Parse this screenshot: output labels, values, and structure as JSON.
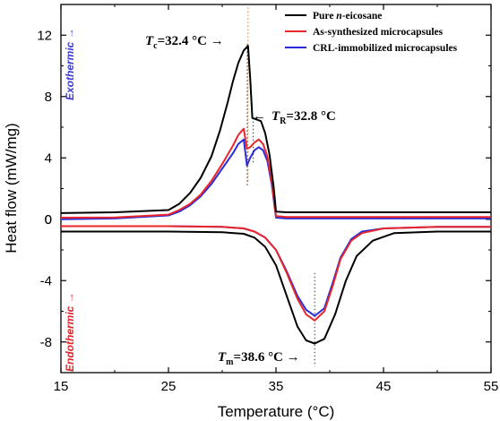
{
  "chart_data": {
    "type": "line",
    "xlabel": "Temperature (",
    "xlabel_unit": "°C",
    "xlabel_close": ")",
    "ylabel": "Heat flow (mW/mg)",
    "xlim": [
      15,
      55
    ],
    "ylim": [
      -10,
      14
    ],
    "x_ticks": [
      "15",
      "25",
      "35",
      "45",
      "55"
    ],
    "y_ticks": [
      "-8",
      "-4",
      "0",
      "4",
      "8",
      "12"
    ],
    "legend": {
      "position": "top-right",
      "entries": [
        {
          "prefix": "Pure ",
          "italic": "n",
          "suffix": "-eicosane",
          "color": "#000000"
        },
        {
          "prefix": "As-synthesized microcapsules",
          "italic": "",
          "suffix": "",
          "color": "#e8262b"
        },
        {
          "prefix": "CRL-immobilized microcapsules",
          "italic": "",
          "suffix": "",
          "color": "#2b2bd9"
        }
      ]
    },
    "annotations": {
      "tc": {
        "symbol": "T",
        "sub": "c",
        "text": "=32.4 °C →",
        "x": 32.4
      },
      "tr": {
        "arrow": "←",
        "symbol": "T",
        "sub": "R",
        "text": "=32.8 °C",
        "x": 32.8
      },
      "tm": {
        "symbol": "T",
        "sub": "m",
        "text": "=38.6 °C →",
        "x": 38.6
      }
    },
    "side_labels": {
      "exo": {
        "text": "Exothermic →",
        "color": "#3b3bd6"
      },
      "endo": {
        "text": "Endothermic →",
        "color": "#e0262b"
      }
    },
    "series": [
      {
        "name": "Pure n-eicosane (cooling)",
        "color": "#000000",
        "x": [
          15,
          20,
          25,
          26,
          27,
          28,
          29,
          29.8,
          30.5,
          31,
          31.5,
          32,
          32.4,
          32.6,
          32.8,
          33.2,
          33.6,
          34,
          34.4,
          34.8,
          35,
          36,
          45,
          55
        ],
        "y": [
          0.4,
          0.45,
          0.6,
          1.0,
          1.7,
          2.7,
          4.1,
          5.8,
          7.6,
          9.0,
          10.2,
          11.0,
          11.3,
          9.2,
          6.6,
          6.5,
          6.4,
          5.6,
          4.2,
          2.0,
          0.5,
          0.45,
          0.45,
          0.45
        ]
      },
      {
        "name": "As-synthesized microcapsules (cooling)",
        "color": "#e8262b",
        "x": [
          15,
          20,
          25,
          26,
          27,
          28,
          29,
          30,
          31,
          31.5,
          32,
          32.3,
          32.6,
          33,
          33.4,
          33.8,
          34.2,
          34.6,
          35,
          36,
          45,
          55
        ],
        "y": [
          0.1,
          0.12,
          0.3,
          0.6,
          1.0,
          1.6,
          2.5,
          3.6,
          4.8,
          5.5,
          5.9,
          4.6,
          4.7,
          5.0,
          5.2,
          4.9,
          4.1,
          2.5,
          0.2,
          0.15,
          0.15,
          0.15
        ]
      },
      {
        "name": "CRL-immobilized microcapsules (cooling)",
        "color": "#2b2bd9",
        "x": [
          15,
          20,
          25,
          26,
          27,
          28,
          29,
          30,
          31,
          31.5,
          32,
          32.3,
          32.6,
          33,
          33.4,
          33.8,
          34.2,
          34.6,
          35,
          36,
          45,
          55
        ],
        "y": [
          0.0,
          0.05,
          0.25,
          0.5,
          0.9,
          1.5,
          2.3,
          3.3,
          4.3,
          4.9,
          5.2,
          3.5,
          4.0,
          4.5,
          4.7,
          4.5,
          3.8,
          2.3,
          0.1,
          0.05,
          0.05,
          0.05
        ]
      },
      {
        "name": "Pure n-eicosane (heating)",
        "color": "#000000",
        "x": [
          15,
          25,
          30,
          32,
          33,
          34,
          35,
          36,
          37,
          37.8,
          38.6,
          39.5,
          40.5,
          41.5,
          42.5,
          44,
          46,
          50,
          55
        ],
        "y": [
          -0.8,
          -0.8,
          -0.85,
          -0.95,
          -1.2,
          -1.8,
          -3.0,
          -5.0,
          -7.0,
          -7.9,
          -8.1,
          -7.8,
          -6.2,
          -4.0,
          -2.4,
          -1.4,
          -0.9,
          -0.8,
          -0.8
        ]
      },
      {
        "name": "As-synthesized microcapsules (heating)",
        "color": "#e8262b",
        "x": [
          15,
          25,
          30,
          32,
          33,
          34,
          35,
          36,
          37,
          37.8,
          38.6,
          39.5,
          40.3,
          41,
          42,
          43,
          45,
          50,
          55
        ],
        "y": [
          -0.45,
          -0.45,
          -0.5,
          -0.6,
          -0.8,
          -1.2,
          -2.0,
          -3.5,
          -5.2,
          -6.2,
          -6.6,
          -6.0,
          -4.3,
          -2.6,
          -1.4,
          -0.9,
          -0.6,
          -0.5,
          -0.5
        ]
      },
      {
        "name": "CRL-immobilized microcapsules (heating)",
        "color": "#2b2bd9",
        "x": [
          15,
          25,
          30,
          32,
          33,
          34,
          35,
          36,
          37,
          37.8,
          38.6,
          39.5,
          40.3,
          41,
          42,
          43,
          45,
          50,
          55
        ],
        "y": [
          -0.45,
          -0.45,
          -0.5,
          -0.6,
          -0.8,
          -1.2,
          -2.0,
          -3.4,
          -5.0,
          -5.9,
          -6.3,
          -5.8,
          -4.1,
          -2.5,
          -1.3,
          -0.8,
          -0.6,
          -0.5,
          -0.5
        ]
      }
    ]
  }
}
